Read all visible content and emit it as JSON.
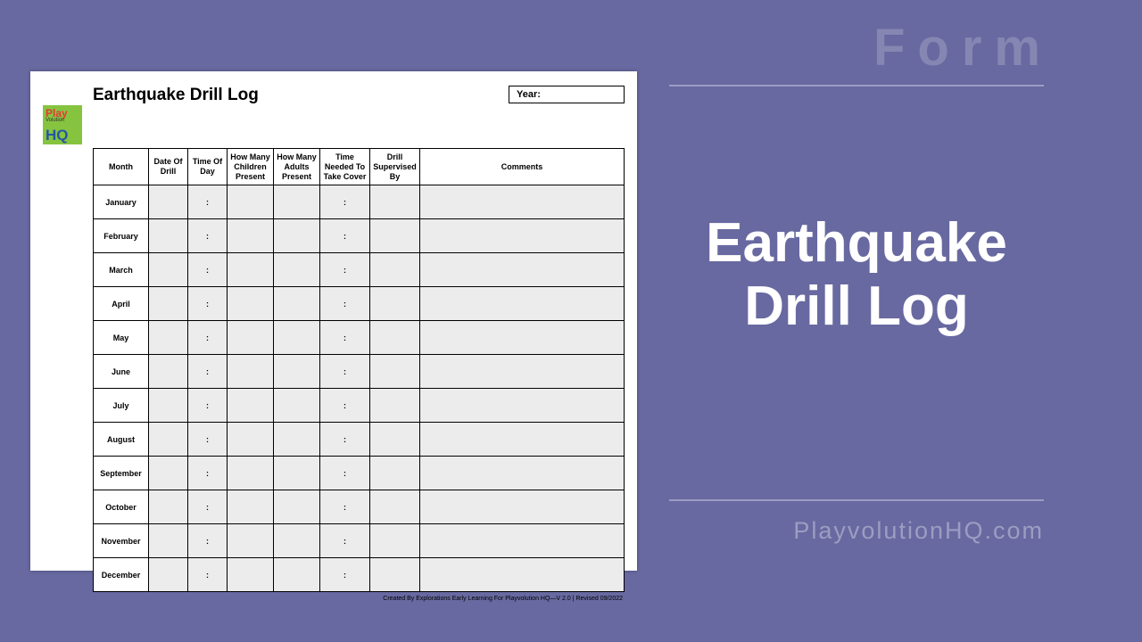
{
  "background_color": "#6869a0",
  "side": {
    "form_label": "Form",
    "main_title_line1": "Earthquake",
    "main_title_line2": "Drill Log",
    "url": "PlayvolutionHQ.com",
    "label_color": "#8586b2",
    "title_color": "#ffffff",
    "url_color": "#9c9dc2",
    "divider_color": "#9c9dc2"
  },
  "document": {
    "logo": {
      "play": "Play",
      "vol": "Volution",
      "hq": "HQ",
      "bg_color": "#86c440",
      "play_color": "#e63936",
      "hq_color": "#2456a6"
    },
    "title": "Earthquake Drill Log",
    "year_label": "Year:",
    "columns": [
      "Month",
      "Date Of Drill",
      "Time Of Day",
      "How Many Children Present",
      "How Many Adults Present",
      "Time Needed To Take Cover",
      "Drill Supervised By",
      "Comments"
    ],
    "months": [
      "January",
      "February",
      "March",
      "April",
      "May",
      "June",
      "July",
      "August",
      "September",
      "October",
      "November",
      "December"
    ],
    "time_placeholder": ":",
    "cover_placeholder": ":",
    "data_cell_bg": "#ececec",
    "footer": "Created By Explorations Early Learning For Playvolution HQ—V 2.0 | Revised 09/2022"
  }
}
